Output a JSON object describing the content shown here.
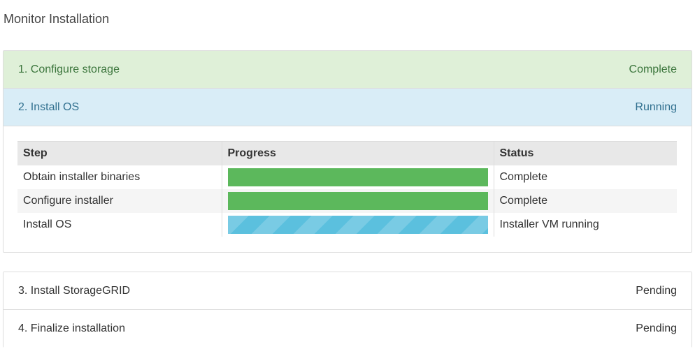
{
  "page_title": "Monitor Installation",
  "stages": [
    {
      "label": "1. Configure storage",
      "status": "Complete"
    },
    {
      "label": "2. Install OS",
      "status": "Running"
    },
    {
      "label": "3. Install StorageGRID",
      "status": "Pending"
    },
    {
      "label": "4. Finalize installation",
      "status": "Pending"
    }
  ],
  "table": {
    "headers": [
      "Step",
      "Progress",
      "Status"
    ],
    "rows": [
      {
        "step": "Obtain installer binaries",
        "progress": 100,
        "status": "Complete"
      },
      {
        "step": "Configure installer",
        "progress": 100,
        "status": "Complete"
      },
      {
        "step": "Install OS",
        "progress": 100,
        "status": "Installer VM running"
      }
    ]
  },
  "colors": {
    "complete": "#5cb85c",
    "running": "#5bc0de"
  }
}
